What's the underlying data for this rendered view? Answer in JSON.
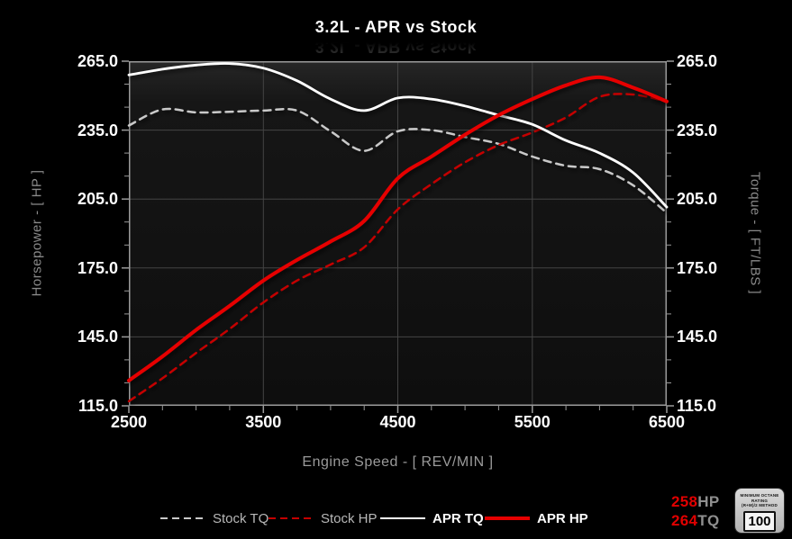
{
  "title": "3.2L - APR vs Stock",
  "chart_data": {
    "type": "line",
    "title": "3.2L - APR vs Stock",
    "xlabel": "Engine Speed - [ REV/MIN ]",
    "ylabel_left": "Horsepower - [ HP ]",
    "ylabel_right": "Torque - [ FT/LBS ]",
    "xlim": [
      2500,
      6500
    ],
    "ylim": [
      115,
      265
    ],
    "x_ticks": [
      "2500",
      "3500",
      "4500",
      "5500",
      "6500"
    ],
    "y_ticks": [
      "265.0",
      "235.0",
      "205.0",
      "175.0",
      "145.0",
      "115.0"
    ],
    "x_minor_step": 250,
    "y_minor_step": 10,
    "grid": true,
    "legend_position": "bottom",
    "background": "#000000",
    "x": [
      2500,
      2750,
      3000,
      3250,
      3500,
      3750,
      4000,
      4250,
      4500,
      4750,
      5000,
      5250,
      5500,
      5750,
      6000,
      6250,
      6500
    ],
    "series": [
      {
        "name": "Stock TQ",
        "unit": "FT/LBS",
        "style": "dashed",
        "color": "#c9c9c9",
        "emphasis": false,
        "values": [
          237,
          244,
          242.7,
          243,
          243.5,
          243.5,
          234.5,
          226,
          234.5,
          235,
          232,
          229,
          223.5,
          219.5,
          218,
          211,
          199
        ]
      },
      {
        "name": "Stock HP",
        "unit": "HP",
        "style": "dashed",
        "color": "#c40000",
        "emphasis": false,
        "values": [
          117,
          127,
          138,
          148.5,
          160,
          169.5,
          176.5,
          184,
          200.5,
          211.5,
          221,
          228.5,
          234,
          240.5,
          249.5,
          250.5,
          247.5
        ]
      },
      {
        "name": "APR TQ",
        "unit": "FT/LBS",
        "style": "solid",
        "color": "#ffffff",
        "emphasis": true,
        "values": [
          259,
          261.5,
          263.3,
          264,
          262,
          256.5,
          248.5,
          243.5,
          249,
          248.5,
          245.5,
          241.5,
          237.5,
          230.5,
          225,
          216.5,
          201.5
        ]
      },
      {
        "name": "APR HP",
        "unit": "HP",
        "style": "solid",
        "color": "#e60000",
        "emphasis": true,
        "values": [
          126,
          136.5,
          148,
          158.5,
          169.5,
          178.5,
          186.5,
          195.5,
          214,
          223.5,
          233,
          241.5,
          248.5,
          254.5,
          258,
          253.5,
          247.5
        ]
      }
    ]
  },
  "results": {
    "hp_value": "258",
    "hp_unit": "HP",
    "tq_value": "264",
    "tq_unit": "TQ",
    "accent": "#e10000"
  },
  "octane_badge": {
    "line1": "MINIMUM OCTANE RATING",
    "line2": "(R+M)/2 METHOD",
    "value": "100"
  },
  "colors": {
    "grid": "#444444",
    "frame": "#9a9a9a",
    "tick_labels": "#ffffff",
    "axis_titles": "#8a8a8a"
  }
}
